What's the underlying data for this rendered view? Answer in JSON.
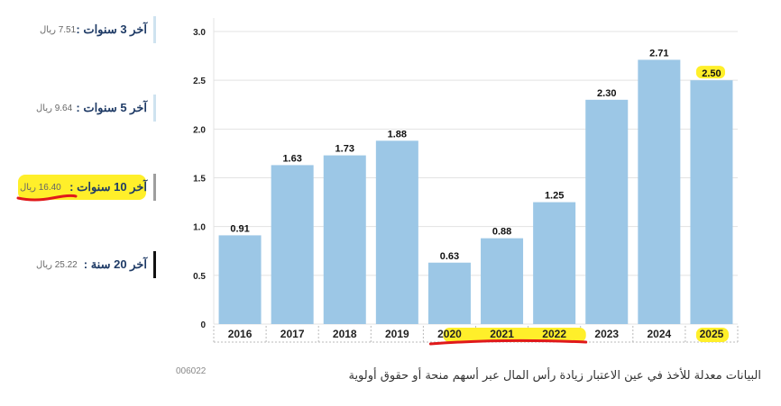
{
  "sidebar": {
    "items": [
      {
        "period": "آخر 3 سنوات :",
        "value": "7.51 ريال",
        "bar_color": "#cfe3f0"
      },
      {
        "period": "آخر 5 سنوات :",
        "value": "9.64 ريال",
        "bar_color": "#cfe3f0"
      },
      {
        "period": "آخر 10 سنوات :",
        "value": "16.40 ريال",
        "bar_color": "#9e9e9e"
      },
      {
        "period": "آخر 20 سنة :",
        "value": "25.22 ريال",
        "bar_color": "#111111"
      }
    ]
  },
  "chart_data": {
    "type": "bar",
    "categories": [
      "2016",
      "2017",
      "2018",
      "2019",
      "2020",
      "2021",
      "2022",
      "2023",
      "2024",
      "2025"
    ],
    "values": [
      0.91,
      1.63,
      1.73,
      1.88,
      0.63,
      0.88,
      1.25,
      2.3,
      2.71,
      2.5
    ],
    "value_labels": [
      "0.91",
      "1.63",
      "1.73",
      "1.88",
      "0.63",
      "0.88",
      "1.25",
      "2.30",
      "2.71",
      "2.50"
    ],
    "y_ticks": [
      "0",
      "0.5",
      "1.0",
      "1.5",
      "2.0",
      "2.5",
      "3.0"
    ],
    "ylim": [
      0,
      3.0
    ],
    "bar_color": "#9cc7e6",
    "grid": true
  },
  "footer": {
    "code": "006022",
    "note": "البيانات معدلة للأخذ في عين الاعتبار زيادة رأس المال عبر أسهم منحة أو حقوق أولوية"
  },
  "annotation_colors": {
    "highlight": "#ffef2a",
    "underline": "#e0191b"
  }
}
